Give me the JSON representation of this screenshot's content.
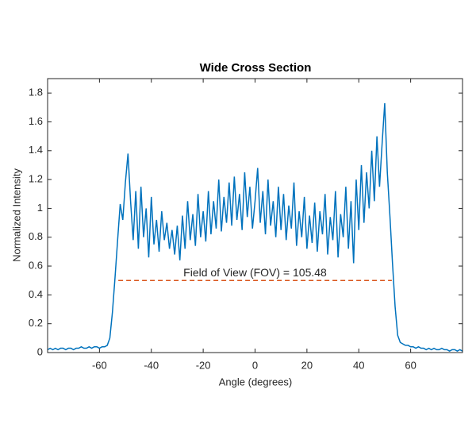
{
  "chart_data": {
    "type": "line",
    "title": "Wide Cross Section",
    "xlabel": "Angle (degrees)",
    "ylabel": "Normalized Intensity",
    "annotation": "Field of View (FOV) = 105.48",
    "xlim": [
      -80,
      80
    ],
    "ylim": [
      0,
      1.9
    ],
    "xticks": [
      -60,
      -40,
      -20,
      0,
      20,
      40,
      60
    ],
    "yticks": [
      0,
      0.2,
      0.4,
      0.6,
      0.8,
      1,
      1.2,
      1.4,
      1.6,
      1.8
    ],
    "series": [
      {
        "color": "#0072BD",
        "style": "solid",
        "x": [
          -80,
          -79,
          -78,
          -77,
          -76,
          -75,
          -74,
          -73,
          -72,
          -71,
          -70,
          -69,
          -68,
          -67,
          -66,
          -65,
          -64,
          -63,
          -62,
          -61,
          -60,
          -59,
          -58,
          -57,
          -56,
          -55,
          -54,
          -53,
          -52,
          -51,
          -50,
          -49,
          -48,
          -47,
          -46,
          -45,
          -44,
          -43,
          -42,
          -41,
          -40,
          -39,
          -38,
          -37,
          -36,
          -35,
          -34,
          -33,
          -32,
          -31,
          -30,
          -29,
          -28,
          -27,
          -26,
          -25,
          -24,
          -23,
          -22,
          -21,
          -20,
          -19,
          -18,
          -17,
          -16,
          -15,
          -14,
          -13,
          -12,
          -11,
          -10,
          -9,
          -8,
          -7,
          -6,
          -5,
          -4,
          -3,
          -2,
          -1,
          0,
          1,
          2,
          3,
          4,
          5,
          6,
          7,
          8,
          9,
          10,
          11,
          12,
          13,
          14,
          15,
          16,
          17,
          18,
          19,
          20,
          21,
          22,
          23,
          24,
          25,
          26,
          27,
          28,
          29,
          30,
          31,
          32,
          33,
          34,
          35,
          36,
          37,
          38,
          39,
          40,
          41,
          42,
          43,
          44,
          45,
          46,
          47,
          48,
          49,
          50,
          51,
          52,
          53,
          54,
          55,
          56,
          57,
          58,
          59,
          60,
          61,
          62,
          63,
          64,
          65,
          66,
          67,
          68,
          69,
          70,
          71,
          72,
          73,
          74,
          75,
          76,
          77,
          78,
          79,
          80
        ],
        "values": [
          0.02,
          0.03,
          0.02,
          0.03,
          0.02,
          0.03,
          0.03,
          0.02,
          0.03,
          0.03,
          0.02,
          0.03,
          0.03,
          0.04,
          0.03,
          0.03,
          0.04,
          0.03,
          0.04,
          0.04,
          0.03,
          0.04,
          0.04,
          0.05,
          0.1,
          0.28,
          0.52,
          0.78,
          1.03,
          0.92,
          1.18,
          1.38,
          1.05,
          0.78,
          1.12,
          0.72,
          1.15,
          0.8,
          1.0,
          0.66,
          1.08,
          0.75,
          0.92,
          0.7,
          0.98,
          0.78,
          0.9,
          0.72,
          0.85,
          0.68,
          0.88,
          0.64,
          0.95,
          0.72,
          1.05,
          0.78,
          0.96,
          0.74,
          1.1,
          0.8,
          0.98,
          0.77,
          1.12,
          0.82,
          1.05,
          0.86,
          1.2,
          0.84,
          1.08,
          0.9,
          1.18,
          0.88,
          1.22,
          0.92,
          1.1,
          0.85,
          1.25,
          0.94,
          1.15,
          0.86,
          1.05,
          1.28,
          0.9,
          1.12,
          0.82,
          1.2,
          0.88,
          1.05,
          0.8,
          1.15,
          0.85,
          1.1,
          0.78,
          1.02,
          0.86,
          1.18,
          0.74,
          0.98,
          0.8,
          1.08,
          0.72,
          0.95,
          0.76,
          1.04,
          0.7,
          0.98,
          0.82,
          1.1,
          0.68,
          0.94,
          0.78,
          1.12,
          0.66,
          0.96,
          0.8,
          1.15,
          0.72,
          1.05,
          0.62,
          1.2,
          0.85,
          1.3,
          0.9,
          1.25,
          1.0,
          1.4,
          1.05,
          1.5,
          1.15,
          1.45,
          1.73,
          1.25,
          0.95,
          0.62,
          0.32,
          0.12,
          0.07,
          0.06,
          0.05,
          0.05,
          0.04,
          0.04,
          0.03,
          0.04,
          0.03,
          0.03,
          0.02,
          0.03,
          0.02,
          0.03,
          0.02,
          0.02,
          0.03,
          0.02,
          0.02,
          0.01,
          0.02,
          0.02,
          0.01,
          0.02,
          0.01
        ]
      },
      {
        "color": "#D95319",
        "style": "dashed",
        "x": [
          -52.74,
          52.74
        ],
        "values": [
          0.5,
          0.5
        ]
      }
    ]
  }
}
